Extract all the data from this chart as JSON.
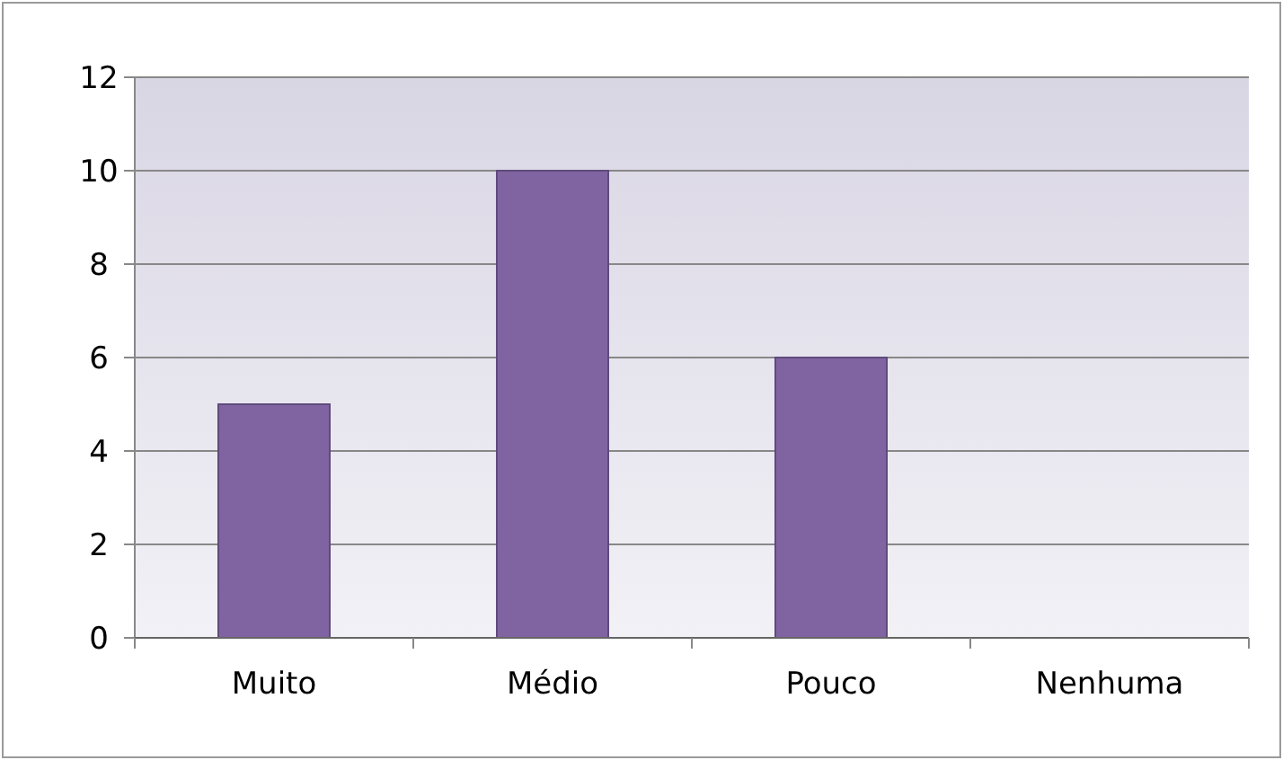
{
  "chart_data": {
    "type": "bar",
    "categories": [
      "Muito",
      "Médio",
      "Pouco",
      "Nenhuma"
    ],
    "values": [
      5,
      10,
      6,
      0
    ],
    "color": "#8064a2",
    "ylim": [
      0,
      12
    ],
    "yticks": [
      0,
      2,
      4,
      6,
      8,
      10,
      12
    ],
    "grid": "y"
  }
}
